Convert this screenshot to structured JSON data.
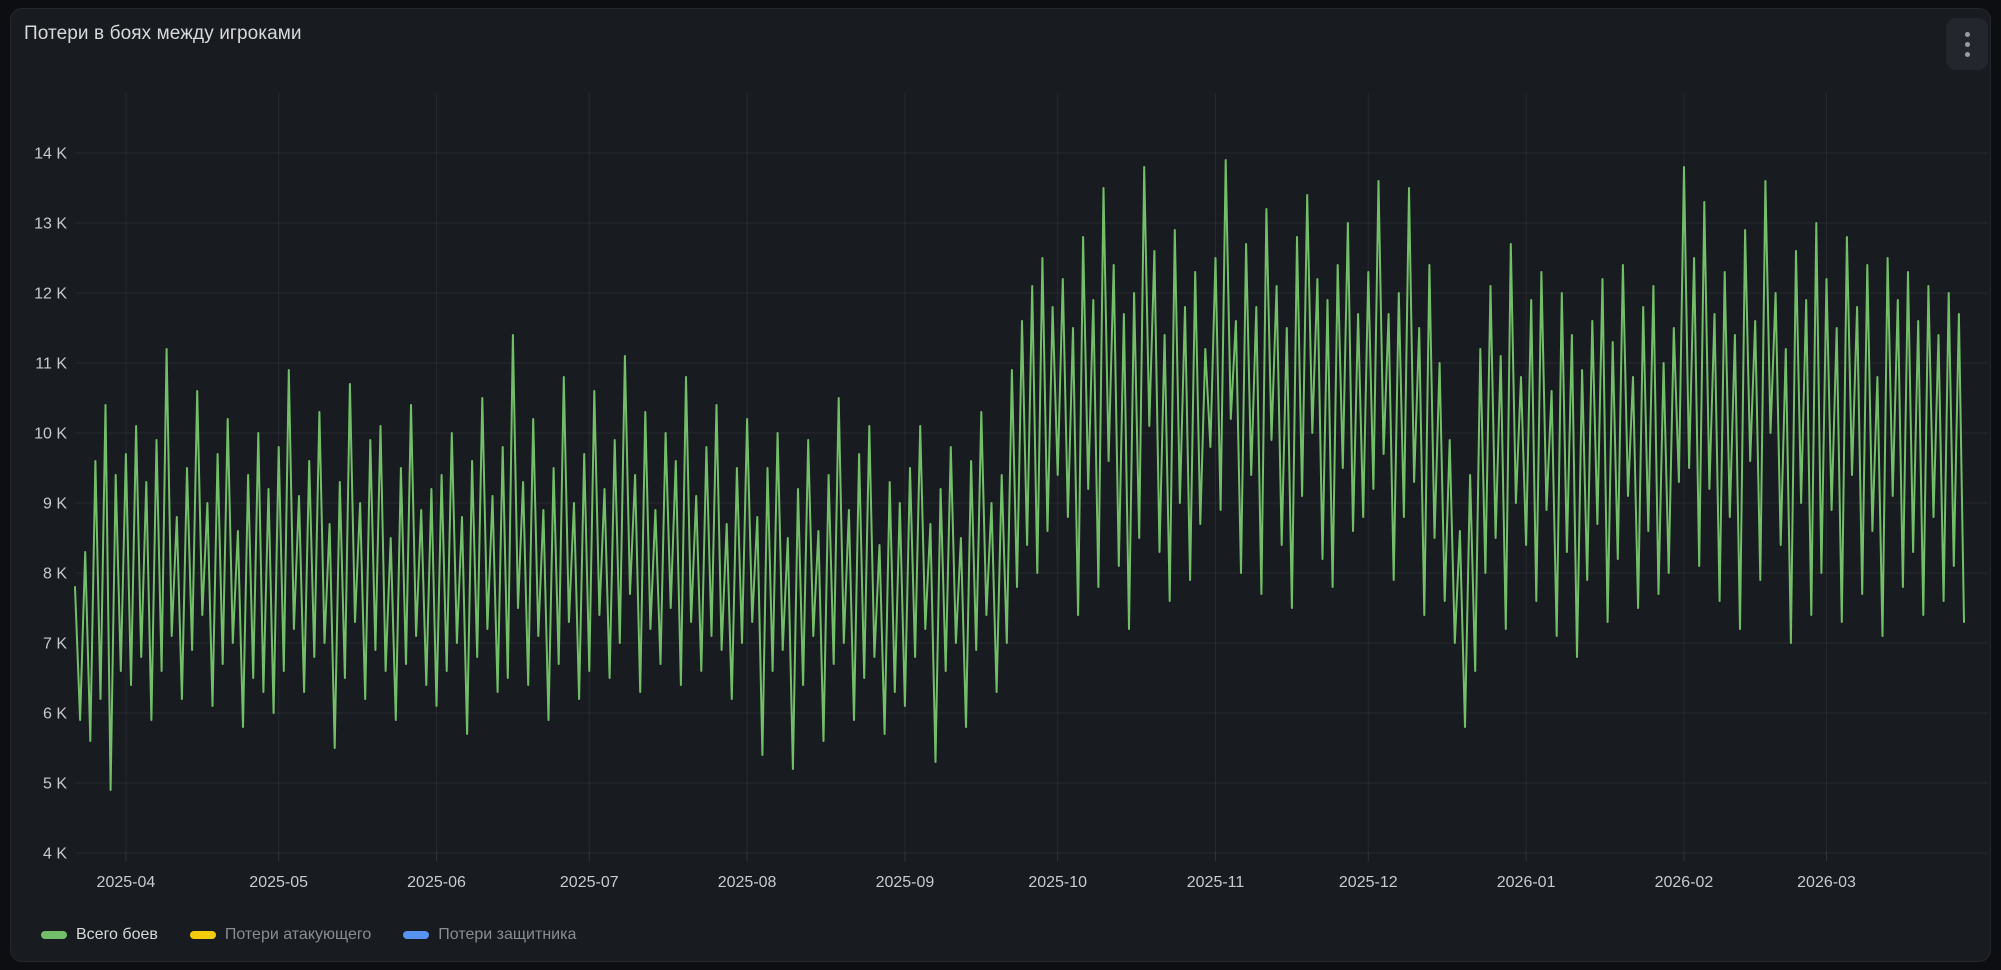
{
  "panel": {
    "title": "Потери в боях между игроками",
    "menu_icon": "kebab-vertical-icon"
  },
  "colors": {
    "outer_bg": "#0d0e11",
    "panel_bg": "#181b1f",
    "border": "#25272e",
    "grid": "rgba(204,215,224,0.08)",
    "axis_text": "#c9cacf",
    "title_text": "#d8d9da",
    "green": "#73BF69",
    "yellow": "#F2CC0C",
    "blue": "#5794F2",
    "legend_inactive": "#8a8c94"
  },
  "legend": {
    "position": "bottom-left",
    "items": [
      {
        "label": "Всего боев",
        "color": "#73BF69",
        "active": true
      },
      {
        "label": "Потери атакующего",
        "color": "#F2CC0C",
        "active": false
      },
      {
        "label": "Потери защитника",
        "color": "#5794F2",
        "active": false
      }
    ]
  },
  "chart_data": {
    "type": "line",
    "title": "Потери в боях между игроками",
    "grid": true,
    "legend_position": "bottom-left",
    "x_axis": {
      "unit": "day",
      "start_date": "2025-03-22",
      "end_date": "2026-03-28",
      "total_days": 371,
      "ticks": [
        {
          "label": "2025-04",
          "day": 10
        },
        {
          "label": "2025-05",
          "day": 40
        },
        {
          "label": "2025-06",
          "day": 71
        },
        {
          "label": "2025-07",
          "day": 101
        },
        {
          "label": "2025-08",
          "day": 132
        },
        {
          "label": "2025-09",
          "day": 163
        },
        {
          "label": "2025-10",
          "day": 193
        },
        {
          "label": "2025-11",
          "day": 224
        },
        {
          "label": "2025-12",
          "day": 254
        },
        {
          "label": "2026-01",
          "day": 285
        },
        {
          "label": "2026-02",
          "day": 316
        },
        {
          "label": "2026-03",
          "day": 344
        }
      ]
    },
    "y_axis": {
      "min": 4,
      "max": 14.5,
      "unit": "K",
      "ticks": [
        {
          "label": "4 K",
          "value": 4
        },
        {
          "label": "5 K",
          "value": 5
        },
        {
          "label": "6 K",
          "value": 6
        },
        {
          "label": "7 K",
          "value": 7
        },
        {
          "label": "8 K",
          "value": 8
        },
        {
          "label": "9 K",
          "value": 9
        },
        {
          "label": "10 K",
          "value": 10
        },
        {
          "label": "11 K",
          "value": 11
        },
        {
          "label": "12 K",
          "value": 12
        },
        {
          "label": "13 K",
          "value": 13
        },
        {
          "label": "14 K",
          "value": 14
        }
      ]
    },
    "series": [
      {
        "name": "Всего боев",
        "color": "#73BF69",
        "visible": true,
        "unit": "K",
        "values": [
          7.8,
          5.9,
          8.3,
          5.6,
          9.6,
          6.2,
          10.4,
          4.9,
          9.4,
          6.6,
          9.7,
          6.4,
          10.1,
          6.8,
          9.3,
          5.9,
          9.9,
          6.6,
          11.2,
          7.1,
          8.8,
          6.2,
          9.5,
          6.9,
          10.6,
          7.4,
          9.0,
          6.1,
          9.7,
          6.7,
          10.2,
          7.0,
          8.6,
          5.8,
          9.4,
          6.5,
          10.0,
          6.3,
          9.2,
          6.0,
          9.8,
          6.6,
          10.9,
          7.2,
          9.1,
          6.3,
          9.6,
          6.8,
          10.3,
          7.0,
          8.7,
          5.5,
          9.3,
          6.5,
          10.7,
          7.3,
          9.0,
          6.2,
          9.9,
          6.9,
          10.1,
          6.6,
          8.5,
          5.9,
          9.5,
          6.7,
          10.4,
          7.1,
          8.9,
          6.4,
          9.2,
          6.1,
          9.4,
          6.6,
          10.0,
          7.0,
          8.8,
          5.7,
          9.6,
          6.8,
          10.5,
          7.2,
          9.1,
          6.3,
          9.8,
          6.5,
          11.4,
          7.5,
          9.3,
          6.4,
          10.2,
          7.1,
          8.9,
          5.9,
          9.5,
          6.7,
          10.8,
          7.3,
          9.0,
          6.2,
          9.7,
          6.6,
          10.6,
          7.4,
          9.2,
          6.5,
          9.9,
          7.0,
          11.1,
          7.7,
          9.4,
          6.3,
          10.3,
          7.2,
          8.9,
          6.7,
          10.0,
          7.5,
          9.6,
          6.4,
          10.8,
          7.3,
          9.1,
          6.6,
          9.8,
          7.1,
          10.4,
          6.9,
          8.7,
          6.2,
          9.5,
          7.0,
          10.2,
          7.3,
          8.8,
          5.4,
          9.5,
          6.6,
          10.0,
          6.9,
          8.5,
          5.2,
          9.2,
          6.4,
          9.9,
          7.1,
          8.6,
          5.6,
          9.4,
          6.7,
          10.5,
          7.0,
          8.9,
          5.9,
          9.7,
          6.5,
          10.1,
          6.8,
          8.4,
          5.7,
          9.3,
          6.3,
          9.0,
          6.1,
          9.5,
          6.8,
          10.1,
          7.2,
          8.7,
          5.3,
          9.2,
          6.6,
          9.8,
          7.0,
          8.5,
          5.8,
          9.6,
          6.9,
          10.3,
          7.4,
          9.0,
          6.3,
          9.4,
          7.0,
          10.9,
          7.8,
          11.6,
          8.4,
          12.1,
          8.0,
          12.5,
          8.6,
          11.8,
          9.4,
          12.2,
          8.8,
          11.5,
          7.4,
          12.8,
          9.2,
          11.9,
          7.8,
          13.5,
          9.6,
          12.4,
          8.1,
          11.7,
          7.2,
          12.0,
          8.5,
          13.8,
          10.1,
          12.6,
          8.3,
          11.4,
          7.6,
          12.9,
          9.0,
          11.8,
          7.9,
          12.3,
          8.7,
          11.2,
          9.8,
          12.5,
          8.9,
          13.9,
          10.2,
          11.6,
          8.0,
          12.7,
          9.4,
          11.8,
          7.7,
          13.2,
          9.9,
          12.1,
          8.4,
          11.5,
          7.5,
          12.8,
          9.1,
          13.4,
          10.0,
          12.2,
          8.2,
          11.9,
          7.8,
          12.4,
          9.5,
          13.0,
          8.6,
          11.7,
          8.8,
          12.3,
          9.2,
          13.6,
          9.7,
          11.7,
          7.9,
          12.0,
          8.8,
          13.5,
          9.3,
          11.5,
          7.4,
          12.4,
          8.5,
          11.0,
          7.6,
          9.9,
          7.0,
          8.6,
          5.8,
          9.4,
          6.6,
          11.2,
          8.0,
          12.1,
          8.5,
          11.1,
          7.2,
          12.7,
          9.0,
          10.8,
          8.4,
          11.9,
          7.6,
          12.3,
          8.9,
          10.6,
          7.1,
          12.0,
          8.3,
          11.4,
          6.8,
          10.9,
          7.9,
          11.6,
          8.7,
          12.2,
          7.3,
          11.3,
          8.2,
          12.4,
          9.1,
          10.8,
          7.5,
          11.8,
          8.6,
          12.1,
          7.7,
          11.0,
          8.0,
          11.5,
          9.3,
          13.8,
          9.5,
          12.5,
          8.1,
          13.3,
          9.2,
          11.7,
          7.6,
          12.3,
          8.8,
          11.4,
          7.2,
          12.9,
          9.6,
          11.6,
          7.9,
          13.6,
          10.0,
          12.0,
          8.4,
          11.2,
          7.0,
          12.6,
          9.0,
          11.9,
          7.4,
          13.0,
          8.0,
          12.2,
          8.9,
          11.5,
          7.3,
          12.8,
          9.4,
          11.8,
          7.7,
          12.4,
          8.6,
          10.8,
          7.1,
          12.5,
          9.1,
          11.9,
          7.8,
          12.3,
          8.3,
          11.6,
          7.4,
          12.1,
          8.8,
          11.4,
          7.6,
          12.0,
          8.1,
          11.7,
          7.3
        ]
      },
      {
        "name": "Потери атакующего",
        "color": "#F2CC0C",
        "visible": false,
        "values": []
      },
      {
        "name": "Потери защитника",
        "color": "#5794F2",
        "visible": false,
        "values": []
      }
    ]
  }
}
